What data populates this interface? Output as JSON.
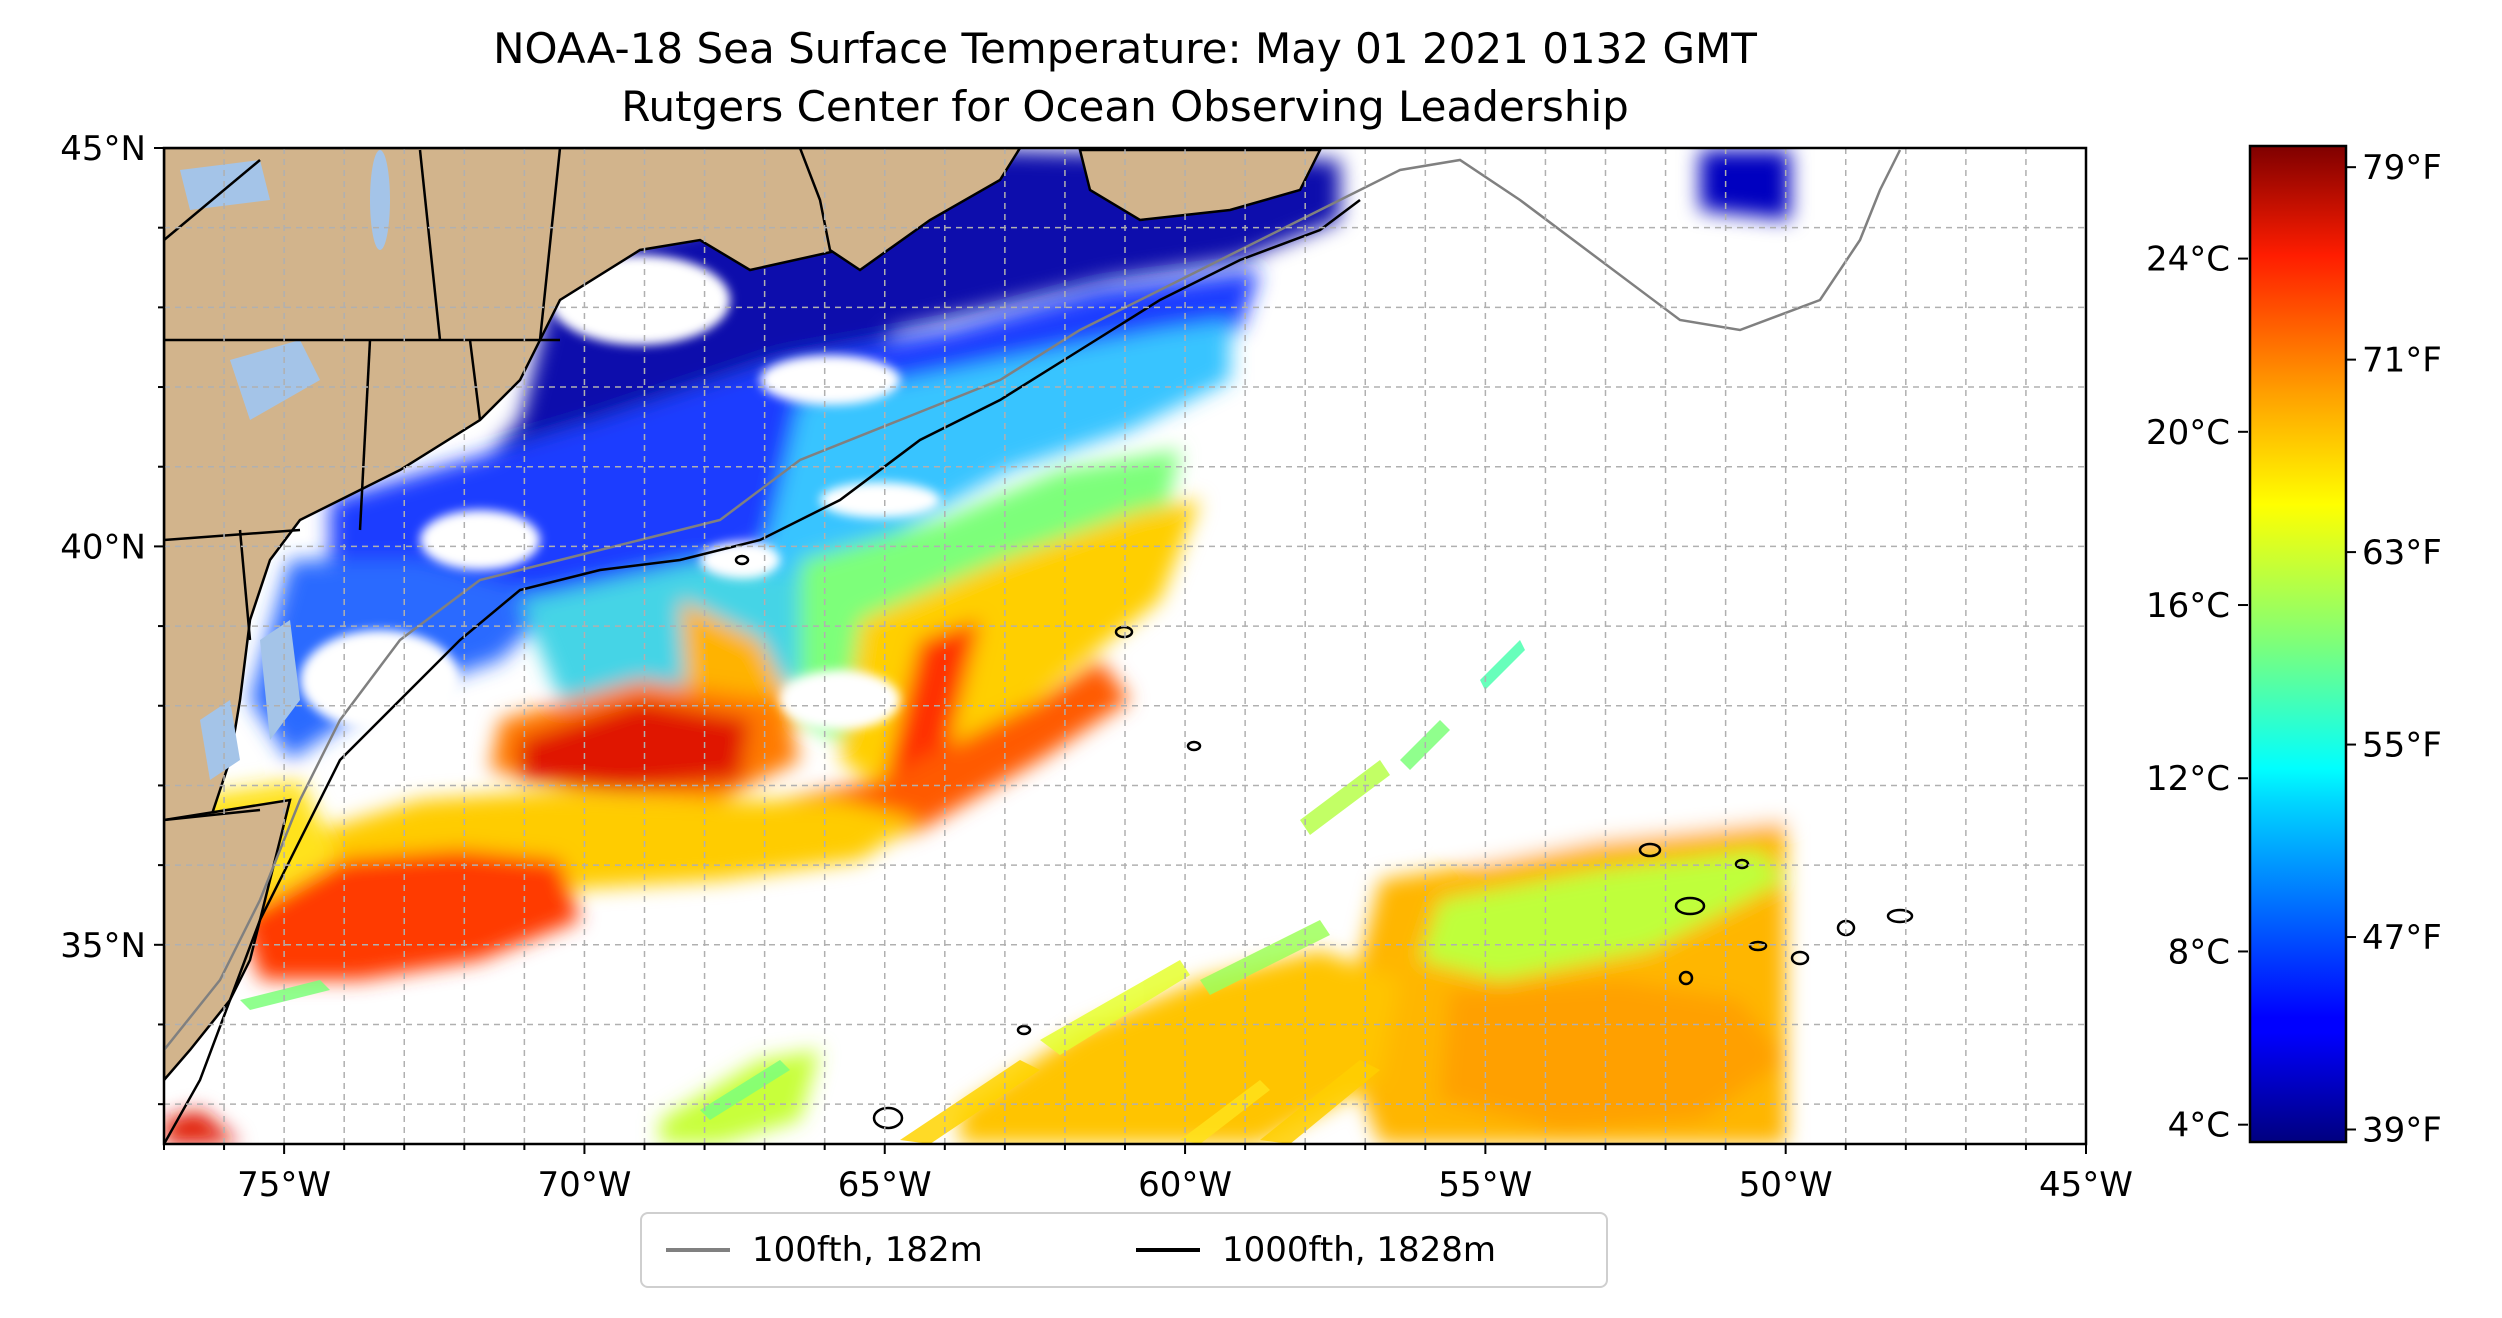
{
  "title": {
    "line1": "NOAA-18 Sea Surface Temperature: May 01 2021 0132 GMT",
    "line2": "Rutgers Center for Ocean Observing Leadership"
  },
  "map": {
    "lon_range": [
      -77,
      -45
    ],
    "lat_range": [
      32.5,
      45
    ],
    "x_ticks": [
      {
        "lon": -75,
        "label": "75°W"
      },
      {
        "lon": -70,
        "label": "70°W"
      },
      {
        "lon": -65,
        "label": "65°W"
      },
      {
        "lon": -60,
        "label": "60°W"
      },
      {
        "lon": -55,
        "label": "55°W"
      },
      {
        "lon": -50,
        "label": "50°W"
      },
      {
        "lon": -45,
        "label": "45°W"
      }
    ],
    "y_ticks": [
      {
        "lat": 45,
        "label": "45°N"
      },
      {
        "lat": 40,
        "label": "40°N"
      },
      {
        "lat": 35,
        "label": "35°N"
      }
    ],
    "grid": true,
    "colors": {
      "land": "#d2b48c",
      "lakes": "#a4c4e8",
      "border": "#000000"
    }
  },
  "colorbar": {
    "colormap": "jet",
    "celsius_range": [
      3.6,
      26.6
    ],
    "celsius_ticks": [
      {
        "value": 24,
        "label": "24°C"
      },
      {
        "value": 20,
        "label": "20°C"
      },
      {
        "value": 16,
        "label": "16°C"
      },
      {
        "value": 12,
        "label": "12°C"
      },
      {
        "value": 8,
        "label": "8°C"
      },
      {
        "value": 4,
        "label": "4°C"
      }
    ],
    "fahrenheit_ticks": [
      {
        "value": 79,
        "label": "79°F"
      },
      {
        "value": 71,
        "label": "71°F"
      },
      {
        "value": 63,
        "label": "63°F"
      },
      {
        "value": 55,
        "label": "55°F"
      },
      {
        "value": 47,
        "label": "47°F"
      },
      {
        "value": 39,
        "label": "39°F"
      }
    ]
  },
  "legend": {
    "placement": "below-map",
    "items": [
      {
        "label": "100fth, 182m",
        "color": "#808080"
      },
      {
        "label": "1000fth, 1828m",
        "color": "#000000"
      }
    ]
  }
}
